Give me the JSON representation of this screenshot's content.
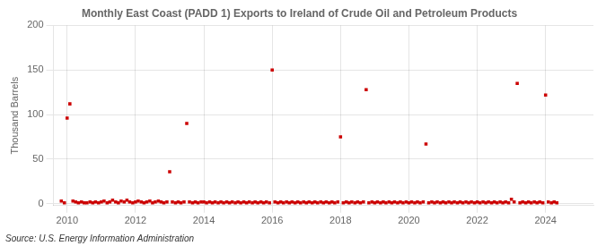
{
  "chart_data": {
    "type": "scatter",
    "title": "Monthly East Coast (PADD 1) Exports to Ireland of Crude Oil and Petroleum Products",
    "ylabel": "Thousand Barrels",
    "source": "Source: U.S. Energy Information Administration",
    "color": "#cc0000",
    "marker": "square",
    "grid": true,
    "xlim": [
      2009.6,
      2025.4
    ],
    "xticks": [
      2010,
      2012,
      2014,
      2016,
      2018,
      2020,
      2022,
      2024
    ],
    "ylim": [
      -2,
      200
    ],
    "yticks": [
      0,
      50,
      100,
      150,
      200
    ],
    "x": [
      2009.83,
      2009.92,
      2010.0,
      2010.08,
      2010.17,
      2010.25,
      2010.33,
      2010.42,
      2010.5,
      2010.58,
      2010.67,
      2010.75,
      2010.83,
      2010.92,
      2011.0,
      2011.08,
      2011.17,
      2011.25,
      2011.33,
      2011.42,
      2011.5,
      2011.58,
      2011.67,
      2011.75,
      2011.83,
      2011.92,
      2012.0,
      2012.08,
      2012.17,
      2012.25,
      2012.33,
      2012.42,
      2012.5,
      2012.58,
      2012.67,
      2012.75,
      2012.83,
      2012.92,
      2013.0,
      2013.08,
      2013.17,
      2013.25,
      2013.33,
      2013.42,
      2013.5,
      2013.58,
      2013.67,
      2013.75,
      2013.83,
      2013.92,
      2014.0,
      2014.08,
      2014.17,
      2014.25,
      2014.33,
      2014.42,
      2014.5,
      2014.58,
      2014.67,
      2014.75,
      2014.83,
      2014.92,
      2015.0,
      2015.08,
      2015.17,
      2015.25,
      2015.33,
      2015.42,
      2015.5,
      2015.58,
      2015.67,
      2015.75,
      2015.83,
      2015.92,
      2016.0,
      2016.08,
      2016.17,
      2016.25,
      2016.33,
      2016.42,
      2016.5,
      2016.58,
      2016.67,
      2016.75,
      2016.83,
      2016.92,
      2017.0,
      2017.08,
      2017.17,
      2017.25,
      2017.33,
      2017.42,
      2017.5,
      2017.58,
      2017.67,
      2017.75,
      2017.83,
      2017.92,
      2018.0,
      2018.08,
      2018.17,
      2018.25,
      2018.33,
      2018.42,
      2018.5,
      2018.58,
      2018.67,
      2018.75,
      2018.83,
      2018.92,
      2019.0,
      2019.08,
      2019.17,
      2019.25,
      2019.33,
      2019.42,
      2019.5,
      2019.58,
      2019.67,
      2019.75,
      2019.83,
      2019.92,
      2020.0,
      2020.08,
      2020.17,
      2020.25,
      2020.33,
      2020.42,
      2020.5,
      2020.58,
      2020.67,
      2020.75,
      2020.83,
      2020.92,
      2021.0,
      2021.08,
      2021.17,
      2021.25,
      2021.33,
      2021.42,
      2021.5,
      2021.58,
      2021.67,
      2021.75,
      2021.83,
      2021.92,
      2022.0,
      2022.08,
      2022.17,
      2022.25,
      2022.33,
      2022.42,
      2022.5,
      2022.58,
      2022.67,
      2022.75,
      2022.83,
      2022.92,
      2023.0,
      2023.08,
      2023.17,
      2023.25,
      2023.33,
      2023.42,
      2023.5,
      2023.58,
      2023.67,
      2023.75,
      2023.83,
      2023.92,
      2024.0,
      2024.08,
      2024.17,
      2024.25,
      2024.33
    ],
    "values": [
      3,
      1,
      96,
      112,
      3,
      2,
      1,
      2,
      1,
      1,
      2,
      1,
      2,
      1,
      2,
      3,
      1,
      2,
      4,
      2,
      1,
      3,
      2,
      4,
      2,
      1,
      2,
      3,
      2,
      1,
      2,
      3,
      1,
      2,
      3,
      2,
      1,
      2,
      36,
      2,
      1,
      2,
      1,
      2,
      90,
      2,
      1,
      2,
      1,
      2,
      2,
      1,
      2,
      1,
      2,
      1,
      2,
      1,
      2,
      1,
      2,
      1,
      2,
      1,
      2,
      1,
      2,
      1,
      2,
      1,
      2,
      1,
      2,
      1,
      150,
      2,
      1,
      2,
      1,
      2,
      1,
      2,
      1,
      2,
      1,
      2,
      1,
      2,
      1,
      2,
      1,
      2,
      1,
      2,
      1,
      2,
      1,
      2,
      75,
      1,
      2,
      1,
      2,
      1,
      2,
      1,
      2,
      128,
      1,
      2,
      1,
      2,
      1,
      2,
      1,
      2,
      1,
      2,
      1,
      2,
      1,
      2,
      1,
      2,
      1,
      2,
      1,
      2,
      67,
      1,
      2,
      1,
      2,
      1,
      2,
      1,
      2,
      1,
      2,
      1,
      2,
      1,
      2,
      1,
      2,
      1,
      2,
      1,
      2,
      1,
      2,
      1,
      2,
      1,
      2,
      1,
      2,
      1,
      5,
      2,
      135,
      1,
      2,
      1,
      2,
      1,
      2,
      1,
      2,
      1,
      122,
      2,
      1,
      2,
      1
    ]
  }
}
